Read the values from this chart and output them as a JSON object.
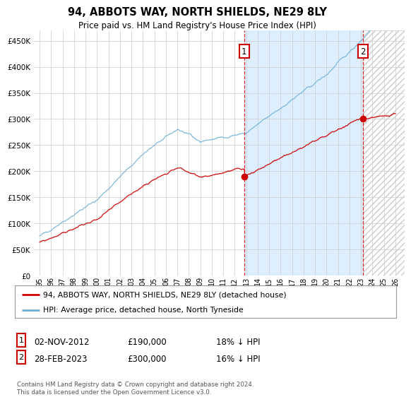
{
  "title": "94, ABBOTS WAY, NORTH SHIELDS, NE29 8LY",
  "subtitle": "Price paid vs. HM Land Registry's House Price Index (HPI)",
  "ylabel_ticks": [
    "£0",
    "£50K",
    "£100K",
    "£150K",
    "£200K",
    "£250K",
    "£300K",
    "£350K",
    "£400K",
    "£450K"
  ],
  "ytick_values": [
    0,
    50000,
    100000,
    150000,
    200000,
    250000,
    300000,
    350000,
    400000,
    450000
  ],
  "ylim": [
    0,
    470000
  ],
  "xlim_start": 1994.5,
  "xlim_end": 2026.8,
  "hpi_color": "#6baed6",
  "price_color": "#cc0000",
  "marker1_date": 2012.83,
  "marker1_value": 190000,
  "marker2_date": 2023.16,
  "marker2_value": 300000,
  "vline_color": "#dd0000",
  "grid_color": "#cccccc",
  "shade_color": "#ddeeff",
  "hatch_color": "#cccccc",
  "background_color": "#ffffff",
  "legend_label_red": "94, ABBOTS WAY, NORTH SHIELDS, NE29 8LY (detached house)",
  "legend_label_blue": "HPI: Average price, detached house, North Tyneside",
  "annotation1_date": "02-NOV-2012",
  "annotation1_price": "£190,000",
  "annotation1_hpi": "18% ↓ HPI",
  "annotation2_date": "28-FEB-2023",
  "annotation2_price": "£300,000",
  "annotation2_hpi": "16% ↓ HPI",
  "footnote": "Contains HM Land Registry data © Crown copyright and database right 2024.\nThis data is licensed under the Open Government Licence v3.0.",
  "xtick_years": [
    1995,
    1996,
    1997,
    1998,
    1999,
    2000,
    2001,
    2002,
    2003,
    2004,
    2005,
    2006,
    2007,
    2008,
    2009,
    2010,
    2011,
    2012,
    2013,
    2014,
    2015,
    2016,
    2017,
    2018,
    2019,
    2020,
    2021,
    2022,
    2023,
    2024,
    2025,
    2026
  ]
}
